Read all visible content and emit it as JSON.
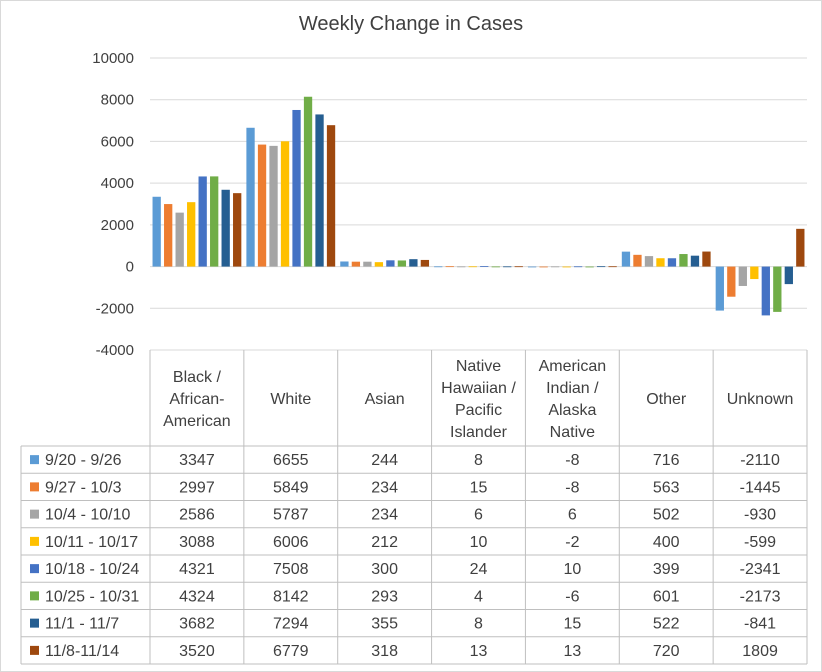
{
  "chart_data": {
    "type": "bar",
    "title": "Weekly Change in Cases",
    "categories": [
      [
        "Black /",
        "African-",
        "American"
      ],
      [
        "White"
      ],
      [
        "Asian"
      ],
      [
        "Native",
        "Hawaiian /",
        "Pacific",
        "Islander"
      ],
      [
        "American",
        "Indian /",
        "Alaska",
        "Native"
      ],
      [
        "Other"
      ],
      [
        "Unknown"
      ]
    ],
    "ylim": [
      -4000,
      10000
    ],
    "yticks": [
      -4000,
      -2000,
      0,
      2000,
      4000,
      6000,
      8000,
      10000
    ],
    "grid": true,
    "legend": "data-table",
    "series": [
      {
        "name": "9/20 - 9/26",
        "color": "#5b9bd5",
        "values": [
          3347,
          6655,
          244,
          8,
          -8,
          716,
          -2110
        ]
      },
      {
        "name": "9/27 - 10/3",
        "color": "#ed7d31",
        "values": [
          2997,
          5849,
          234,
          15,
          -8,
          563,
          -1445
        ]
      },
      {
        "name": "10/4 - 10/10",
        "color": "#a5a5a5",
        "values": [
          2586,
          5787,
          234,
          6,
          6,
          502,
          -930
        ]
      },
      {
        "name": "10/11 - 10/17",
        "color": "#ffc000",
        "values": [
          3088,
          6006,
          212,
          10,
          -2,
          400,
          -599
        ]
      },
      {
        "name": "10/18 - 10/24",
        "color": "#4472c4",
        "values": [
          4321,
          7508,
          300,
          24,
          10,
          399,
          -2341
        ]
      },
      {
        "name": "10/25 - 10/31",
        "color": "#70ad47",
        "values": [
          4324,
          8142,
          293,
          4,
          -6,
          601,
          -2173
        ]
      },
      {
        "name": "11/1 - 11/7",
        "color": "#255e91",
        "values": [
          3682,
          7294,
          355,
          8,
          15,
          522,
          -841
        ]
      },
      {
        "name": "11/8-11/14",
        "color": "#9e480e",
        "values": [
          3520,
          6779,
          318,
          13,
          13,
          720,
          1809
        ]
      }
    ]
  }
}
